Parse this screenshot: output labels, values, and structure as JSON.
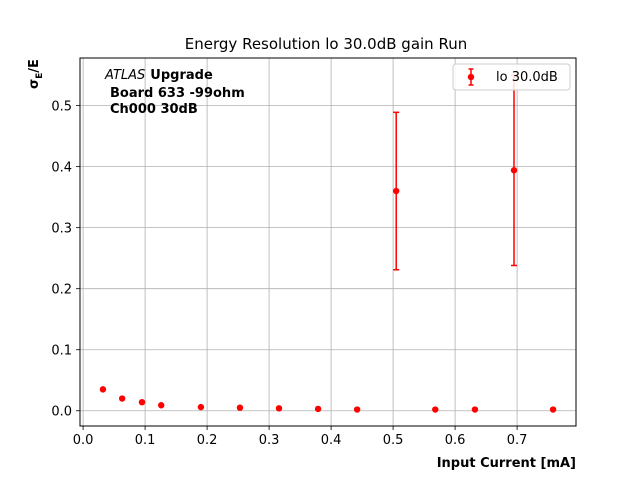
{
  "chart_data": {
    "type": "scatter",
    "title": "Energy Resolution lo 30.0dB gain Run",
    "xlabel": "Input Current [mA]",
    "ylabel_main": "σ",
    "ylabel_sub": "E",
    "ylabel_tail": "/E",
    "xlim": [
      -0.005,
      0.795
    ],
    "ylim": [
      -0.025,
      0.578
    ],
    "xticks": [
      0.0,
      0.1,
      0.2,
      0.3,
      0.4,
      0.5,
      0.6,
      0.7
    ],
    "xtick_labels": [
      "0.0",
      "0.1",
      "0.2",
      "0.3",
      "0.4",
      "0.5",
      "0.6",
      "0.7"
    ],
    "yticks": [
      0.0,
      0.1,
      0.2,
      0.3,
      0.4,
      0.5
    ],
    "ytick_labels": [
      "0.0",
      "0.1",
      "0.2",
      "0.3",
      "0.4",
      "0.5"
    ],
    "grid": true,
    "legend_position": "top-right",
    "series": [
      {
        "name": "lo 30.0dB",
        "color": "#ff0000",
        "points": [
          {
            "x": 0.032,
            "y": 0.035,
            "err": 0.0
          },
          {
            "x": 0.063,
            "y": 0.02,
            "err": 0.0
          },
          {
            "x": 0.095,
            "y": 0.014,
            "err": 0.0
          },
          {
            "x": 0.126,
            "y": 0.009,
            "err": 0.0
          },
          {
            "x": 0.19,
            "y": 0.006,
            "err": 0.0
          },
          {
            "x": 0.253,
            "y": 0.005,
            "err": 0.0
          },
          {
            "x": 0.316,
            "y": 0.004,
            "err": 0.0
          },
          {
            "x": 0.379,
            "y": 0.003,
            "err": 0.0
          },
          {
            "x": 0.442,
            "y": 0.002,
            "err": 0.0
          },
          {
            "x": 0.505,
            "y": 0.36,
            "err": 0.129
          },
          {
            "x": 0.568,
            "y": 0.002,
            "err": 0.0
          },
          {
            "x": 0.632,
            "y": 0.002,
            "err": 0.0
          },
          {
            "x": 0.695,
            "y": 0.394,
            "err": 0.156
          },
          {
            "x": 0.758,
            "y": 0.002,
            "err": 0.0
          }
        ]
      }
    ],
    "annotation": {
      "atlas": "ATLAS",
      "upgrade": "Upgrade",
      "line2": "Board 633 -99ohm",
      "line3": "Ch000 30dB"
    }
  }
}
